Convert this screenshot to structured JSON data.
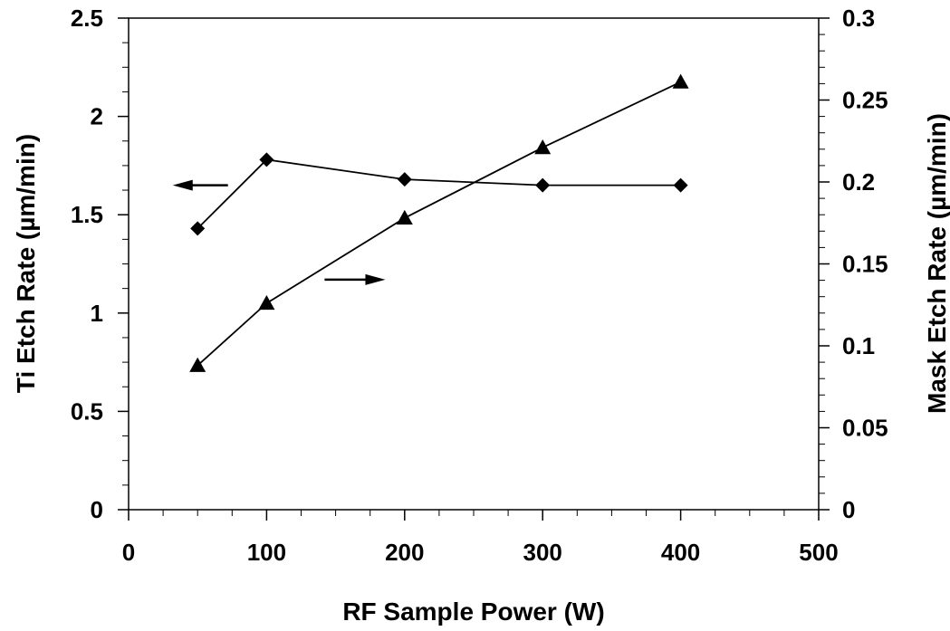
{
  "chart_data": {
    "type": "line",
    "title": "",
    "xlabel": "RF Sample Power (W)",
    "ylabel": "Ti Etch Rate (µm/min)",
    "y2label": "Mask Etch Rate (µm/min)",
    "xlim": [
      0,
      500
    ],
    "ylim": [
      0,
      2.5
    ],
    "y2lim": [
      0,
      0.3
    ],
    "x_ticks": [
      "0",
      "100",
      "200",
      "300",
      "400",
      "500"
    ],
    "y_ticks": [
      "0",
      "0.5",
      "1",
      "1.5",
      "2",
      "2.5"
    ],
    "y2_ticks": [
      "0",
      "0.05",
      "0.1",
      "0.15",
      "0.2",
      "0.25",
      "0.3"
    ],
    "grid": false,
    "legend": "none",
    "series": [
      {
        "axis": "left",
        "marker": "diamond",
        "x": [
          50,
          100,
          200,
          300,
          400
        ],
        "values": [
          1.43,
          1.78,
          1.68,
          1.65,
          1.65
        ]
      },
      {
        "axis": "right",
        "marker": "triangle",
        "x": [
          50,
          100,
          200,
          300,
          400
        ],
        "values": [
          0.088,
          0.126,
          0.178,
          0.221,
          0.261
        ]
      }
    ],
    "annotations": [
      {
        "type": "arrow",
        "direction": "left",
        "points_to_axis": "left",
        "near_series": 0
      },
      {
        "type": "arrow",
        "direction": "right",
        "points_to_axis": "right",
        "near_series": 1
      }
    ]
  }
}
